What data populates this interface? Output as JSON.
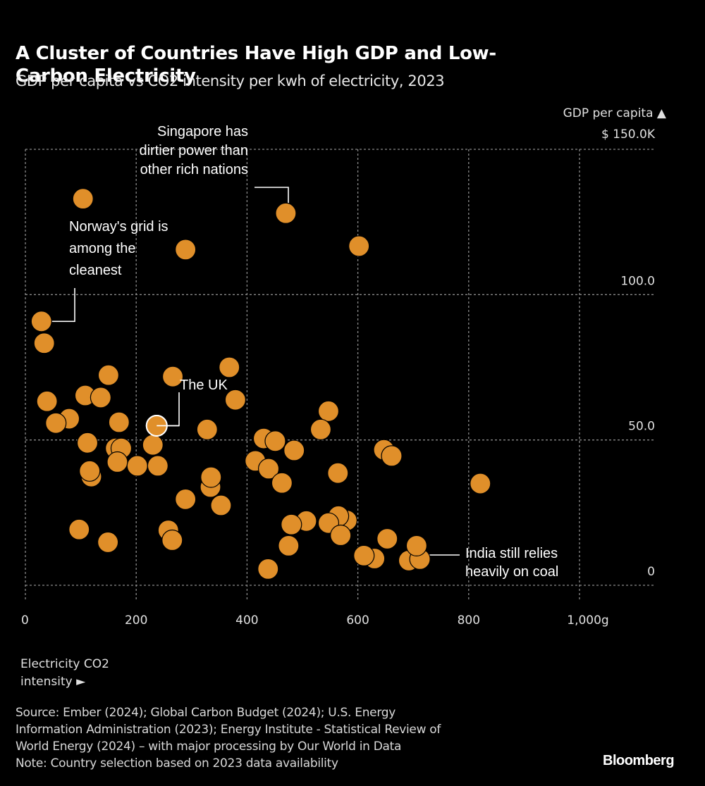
{
  "header": {
    "title": "A Cluster of Countries Have High GDP and Low-Carbon Electricity",
    "subtitle": "GDP per capita vs CO2 intensity per kwh of electricity, 2023"
  },
  "colors": {
    "background": "#000000",
    "dot": "#E08F2A",
    "dot_outline": "#000000",
    "highlight_ring": "#FFFFFF",
    "grid": "#8a8a8a",
    "text": "#FFFFFF"
  },
  "chart_data": {
    "type": "scatter",
    "title": "A Cluster of Countries Have High GDP and Low-Carbon Electricity",
    "subtitle": "GDP per capita vs CO2 intensity per kwh of electricity, 2023",
    "xlabel": "Electricity CO2 intensity",
    "xlabel_arrow": "►",
    "ylabel": "GDP per capita",
    "ylabel_arrow": "▲",
    "x_unit": "g",
    "y_unit": "$ thousands",
    "xlim": [
      0,
      1000
    ],
    "ylim": [
      0,
      150
    ],
    "x_ticks": [
      {
        "value": 0,
        "label": "0"
      },
      {
        "value": 200,
        "label": "200"
      },
      {
        "value": 400,
        "label": "400"
      },
      {
        "value": 600,
        "label": "600"
      },
      {
        "value": 800,
        "label": "800"
      },
      {
        "value": 1000,
        "label": "1,000g"
      }
    ],
    "y_ticks": [
      {
        "value": 0,
        "label": "0"
      },
      {
        "value": 50,
        "label": "50.0"
      },
      {
        "value": 100,
        "label": "100.0"
      },
      {
        "value": 150,
        "label": "$ 150.0K"
      }
    ],
    "grid": true,
    "y_axis_side": "right",
    "points": [
      {
        "x": 104,
        "y": 133
      },
      {
        "x": 470,
        "y": 128,
        "label": "Singapore"
      },
      {
        "x": 289,
        "y": 115.5
      },
      {
        "x": 602,
        "y": 116.7
      },
      {
        "x": 29,
        "y": 90.8,
        "label": "Norway"
      },
      {
        "x": 34,
        "y": 83.3
      },
      {
        "x": 150,
        "y": 72.3
      },
      {
        "x": 266,
        "y": 71.8
      },
      {
        "x": 368,
        "y": 75
      },
      {
        "x": 379,
        "y": 63.8
      },
      {
        "x": 39,
        "y": 63.3
      },
      {
        "x": 108,
        "y": 65.3
      },
      {
        "x": 136,
        "y": 64.6
      },
      {
        "x": 79,
        "y": 57.3
      },
      {
        "x": 55,
        "y": 55.8
      },
      {
        "x": 169,
        "y": 56.1
      },
      {
        "x": 328,
        "y": 53.6
      },
      {
        "x": 547,
        "y": 59.9
      },
      {
        "x": 533,
        "y": 53.6
      },
      {
        "x": 112,
        "y": 49
      },
      {
        "x": 230,
        "y": 48.3
      },
      {
        "x": 163,
        "y": 47.1
      },
      {
        "x": 173,
        "y": 47.1
      },
      {
        "x": 430,
        "y": 50.5
      },
      {
        "x": 451,
        "y": 49.6
      },
      {
        "x": 485,
        "y": 46.4
      },
      {
        "x": 647,
        "y": 46.6
      },
      {
        "x": 661,
        "y": 44.5
      },
      {
        "x": 166,
        "y": 42.4
      },
      {
        "x": 202,
        "y": 41.1
      },
      {
        "x": 239,
        "y": 41.1
      },
      {
        "x": 415,
        "y": 42.8
      },
      {
        "x": 439,
        "y": 40.1
      },
      {
        "x": 119,
        "y": 37.4
      },
      {
        "x": 116,
        "y": 39.3
      },
      {
        "x": 564,
        "y": 38.6
      },
      {
        "x": 334,
        "y": 33.8
      },
      {
        "x": 335,
        "y": 37.2
      },
      {
        "x": 463,
        "y": 35.2
      },
      {
        "x": 821,
        "y": 35
      },
      {
        "x": 353,
        "y": 27.5
      },
      {
        "x": 289,
        "y": 29.6
      },
      {
        "x": 97,
        "y": 19.2
      },
      {
        "x": 149,
        "y": 14.8
      },
      {
        "x": 258,
        "y": 18.9
      },
      {
        "x": 265,
        "y": 15.5
      },
      {
        "x": 507,
        "y": 22.1
      },
      {
        "x": 480,
        "y": 20.9
      },
      {
        "x": 580,
        "y": 22.3
      },
      {
        "x": 565,
        "y": 23.8
      },
      {
        "x": 547,
        "y": 21.4
      },
      {
        "x": 569,
        "y": 17.2
      },
      {
        "x": 475,
        "y": 13.6
      },
      {
        "x": 653,
        "y": 16
      },
      {
        "x": 630,
        "y": 9.2
      },
      {
        "x": 611,
        "y": 10.2
      },
      {
        "x": 692,
        "y": 8.5
      },
      {
        "x": 712,
        "y": 9,
        "label": "India"
      },
      {
        "x": 706,
        "y": 13.6
      },
      {
        "x": 438,
        "y": 5.6
      },
      {
        "x": 237,
        "y": 54.9,
        "label": "UK",
        "highlight": true
      }
    ],
    "annotations": [
      {
        "target": "Singapore",
        "lines": [
          "Singapore has",
          "dirtier power than",
          "other rich nations"
        ]
      },
      {
        "target": "Norway",
        "lines": [
          "Norway's grid is",
          "among the",
          "cleanest"
        ]
      },
      {
        "target": "UK",
        "lines": [
          "The UK"
        ]
      },
      {
        "target": "India",
        "lines": [
          "India still relies",
          "heavily on coal"
        ]
      }
    ]
  },
  "axis_labels": {
    "y_title": "GDP per capita ▲",
    "x_title_line1": "Electricity CO2",
    "x_title_line2": "intensity ►"
  },
  "footer": {
    "source_lines": [
      "Source: Ember (2024); Global Carbon Budget (2024); U.S. Energy",
      "Information Administration (2023); Energy Institute - Statistical Review of",
      "World Energy (2024) – with major processing by Our World in Data",
      "Note: Country selection based on 2023 data availability"
    ],
    "logo": "Bloomberg"
  }
}
